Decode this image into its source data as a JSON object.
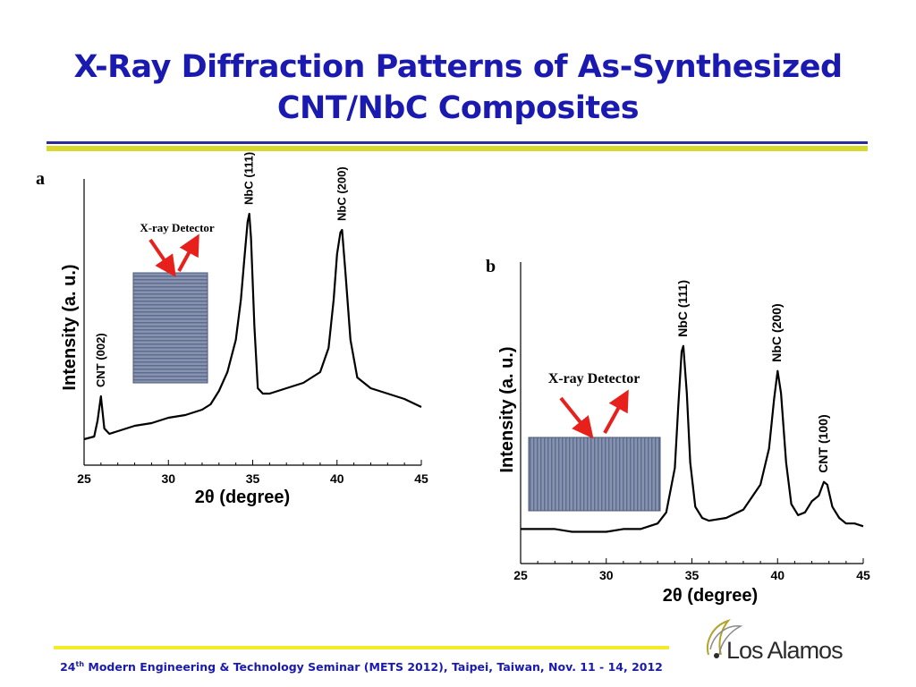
{
  "slide": {
    "title_line1": "X-Ray Diffraction Patterns of As-Synthesized",
    "title_line2": "CNT/NbC Composites",
    "footer_ordinal": "24",
    "footer_sup": "th",
    "footer_rest": " Modern Engineering & Technology Seminar (METS 2012), Taipei, Taiwan, Nov. 11 - 14, 2012",
    "logo_text": "Los Alamos"
  },
  "colors": {
    "title": "#1a1ab0",
    "rule_blue": "#2a2a9a",
    "rule_yellow": "#d7d72c",
    "footer_line": "#f2ec2c",
    "arrow": "#e8201c",
    "sample": "#6f7e9e"
  },
  "chart_data": [
    {
      "type": "line",
      "panel_label": "a",
      "xlabel": "2θ (degree)",
      "ylabel": "Intensity (a. u.)",
      "xlim": [
        25,
        45
      ],
      "x_ticks": [
        "25",
        "30",
        "35",
        "40",
        "45"
      ],
      "y_scale": "relative (no ticks)",
      "series": [
        {
          "x": [
            25,
            25.6,
            25.8,
            26.0,
            26.2,
            26.5,
            27,
            28,
            29,
            30,
            31,
            32,
            32.5,
            33,
            33.5,
            34,
            34.3,
            34.5,
            34.7,
            34.8,
            34.9,
            35.1,
            35.3,
            35.6,
            36,
            37,
            38,
            39,
            39.5,
            39.8,
            40.0,
            40.2,
            40.3,
            40.5,
            40.8,
            41.2,
            42,
            43,
            44,
            45
          ],
          "y": [
            0.03,
            0.04,
            0.1,
            0.19,
            0.07,
            0.05,
            0.06,
            0.08,
            0.09,
            0.11,
            0.12,
            0.14,
            0.16,
            0.21,
            0.28,
            0.4,
            0.55,
            0.7,
            0.84,
            0.87,
            0.78,
            0.45,
            0.22,
            0.2,
            0.2,
            0.22,
            0.24,
            0.28,
            0.37,
            0.55,
            0.72,
            0.8,
            0.81,
            0.65,
            0.4,
            0.26,
            0.22,
            0.2,
            0.18,
            0.15
          ]
        }
      ],
      "annotations": [
        {
          "text": "CNT (002)",
          "x": 26.0
        },
        {
          "text": "NbC (111)",
          "x": 34.8
        },
        {
          "text": "NbC (200)",
          "x": 40.3
        }
      ],
      "inset_label": "X-ray  Detector"
    },
    {
      "type": "line",
      "panel_label": "b",
      "xlabel": "2θ (degree)",
      "ylabel": "Intensity (a. u.)",
      "xlim": [
        25,
        45
      ],
      "x_ticks": [
        "25",
        "30",
        "35",
        "40",
        "45"
      ],
      "y_scale": "relative (no ticks)",
      "series": [
        {
          "x": [
            25,
            26,
            27,
            28,
            29,
            30,
            31,
            32,
            33,
            33.5,
            34,
            34.2,
            34.4,
            34.5,
            34.7,
            34.9,
            35.2,
            35.6,
            36,
            37,
            38,
            39,
            39.5,
            39.8,
            40.0,
            40.2,
            40.5,
            40.8,
            41.2,
            41.6,
            42.0,
            42.4,
            42.7,
            42.9,
            43.2,
            43.6,
            44,
            44.5,
            45
          ],
          "y": [
            0.06,
            0.06,
            0.06,
            0.05,
            0.05,
            0.05,
            0.06,
            0.06,
            0.08,
            0.12,
            0.28,
            0.5,
            0.7,
            0.72,
            0.55,
            0.3,
            0.14,
            0.1,
            0.09,
            0.1,
            0.13,
            0.22,
            0.35,
            0.53,
            0.63,
            0.55,
            0.3,
            0.15,
            0.11,
            0.12,
            0.16,
            0.18,
            0.23,
            0.22,
            0.14,
            0.1,
            0.08,
            0.08,
            0.07
          ]
        }
      ],
      "annotations": [
        {
          "text": "NbC (111)",
          "x": 34.5
        },
        {
          "text": "NbC (200)",
          "x": 40.0
        },
        {
          "text": "CNT (100)",
          "x": 42.7
        }
      ],
      "inset_label": "X-ray  Detector"
    }
  ]
}
